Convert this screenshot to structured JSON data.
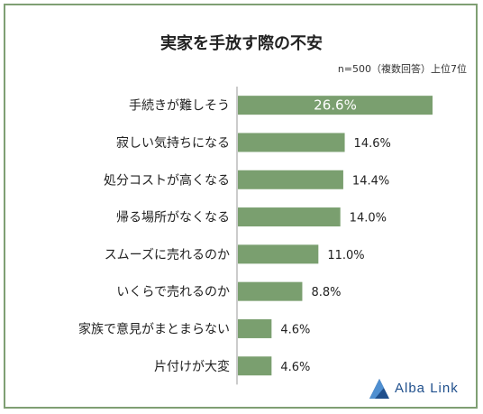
{
  "header": {
    "title": "実家を手放す際の不安",
    "note": "n=500（複数回答）上位7位"
  },
  "brand": {
    "name": "Alba Link",
    "color": "#1f4f8c"
  },
  "colors": {
    "bar": "#7a9f6f",
    "axis": "#999999",
    "frame": "#7f9f73"
  },
  "chart_data": {
    "type": "bar",
    "orientation": "horizontal",
    "title": "実家を手放す際の不安",
    "categories": [
      "手続きが難しそう",
      "寂しい気持ちになる",
      "処分コストが高くなる",
      "帰る場所がなくなる",
      "スムーズに売れるのか",
      "いくらで売れるのか",
      "家族で意見がまとまらない",
      "片付けが大変"
    ],
    "values": [
      26.6,
      14.6,
      14.4,
      14.0,
      11.0,
      8.8,
      4.6,
      4.6
    ],
    "value_labels": [
      "26.6%",
      "14.6%",
      "14.4%",
      "14.0%",
      "11.0%",
      "8.8%",
      "4.6%",
      "4.6%"
    ],
    "xlim": [
      0,
      30
    ]
  }
}
